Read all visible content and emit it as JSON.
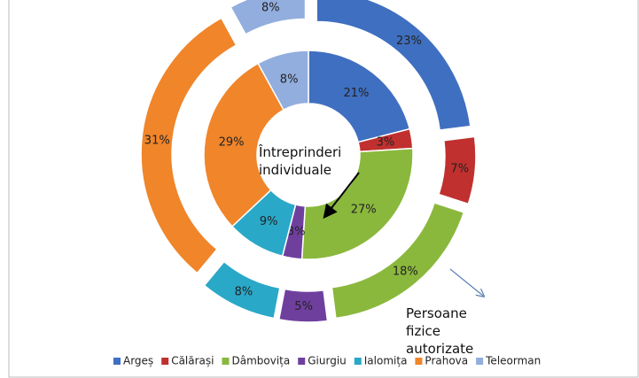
{
  "chart_data": {
    "type": "doughnut",
    "categories": [
      "Argeș",
      "Călărași",
      "Dâmbovița",
      "Giurgiu",
      "Ialomița",
      "Prahova",
      "Teleorman"
    ],
    "colors": [
      "#3f6fc0",
      "#c0302f",
      "#8ab83d",
      "#6f3f9e",
      "#2aa8c8",
      "#f0852a",
      "#92aede"
    ],
    "series": [
      {
        "name": "Întreprinderi individuale",
        "values": [
          21,
          3,
          27,
          3,
          9,
          29,
          8
        ],
        "value_labels": [
          "21%",
          "3%",
          "27%",
          "3%",
          "9%",
          "29%",
          "8%"
        ]
      },
      {
        "name": "Persoane fizice autorizate",
        "values": [
          23,
          7,
          18,
          5,
          8,
          31,
          8
        ],
        "value_labels": [
          "23%",
          "7%",
          "18%",
          "5%",
          "8%",
          "31%",
          "8%"
        ]
      }
    ],
    "legend": "bottom"
  }
}
